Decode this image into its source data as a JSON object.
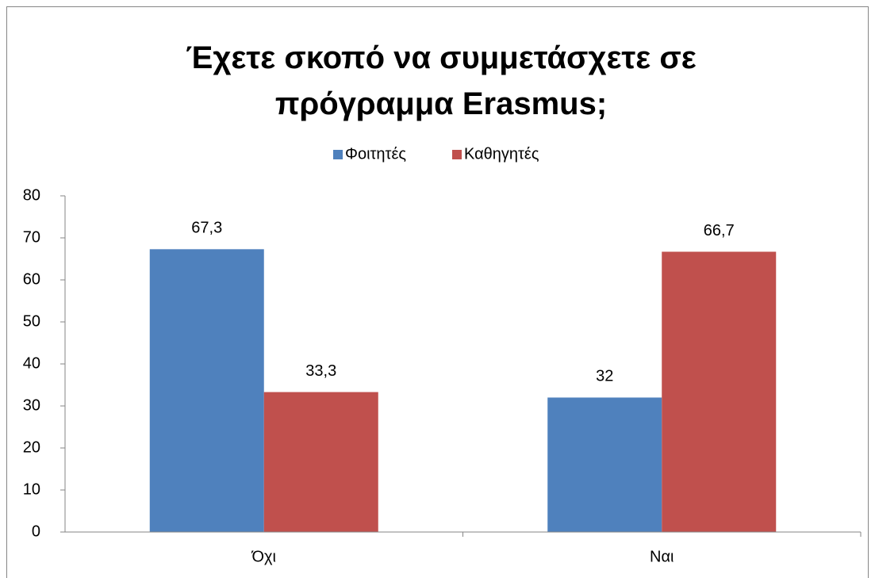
{
  "chart_data": {
    "type": "bar",
    "title": "Έχετε σκοπό να συμμετάσχετε σε πρόγραμμα Erasmus;",
    "categories": [
      "Όχι",
      "Ναι"
    ],
    "series": [
      {
        "name": "Φοιτητές",
        "color": "#4f81bd",
        "values": [
          67.3,
          32
        ],
        "value_labels": [
          "67,3",
          "32"
        ]
      },
      {
        "name": "Καθηγητές",
        "color": "#c0504d",
        "values": [
          33.3,
          66.7
        ],
        "value_labels": [
          "33,3",
          "66,7"
        ]
      }
    ],
    "ylim": [
      0,
      80
    ],
    "yticks": [
      0,
      10,
      20,
      30,
      40,
      50,
      60,
      70,
      80
    ],
    "grid": false,
    "legend": "top"
  }
}
